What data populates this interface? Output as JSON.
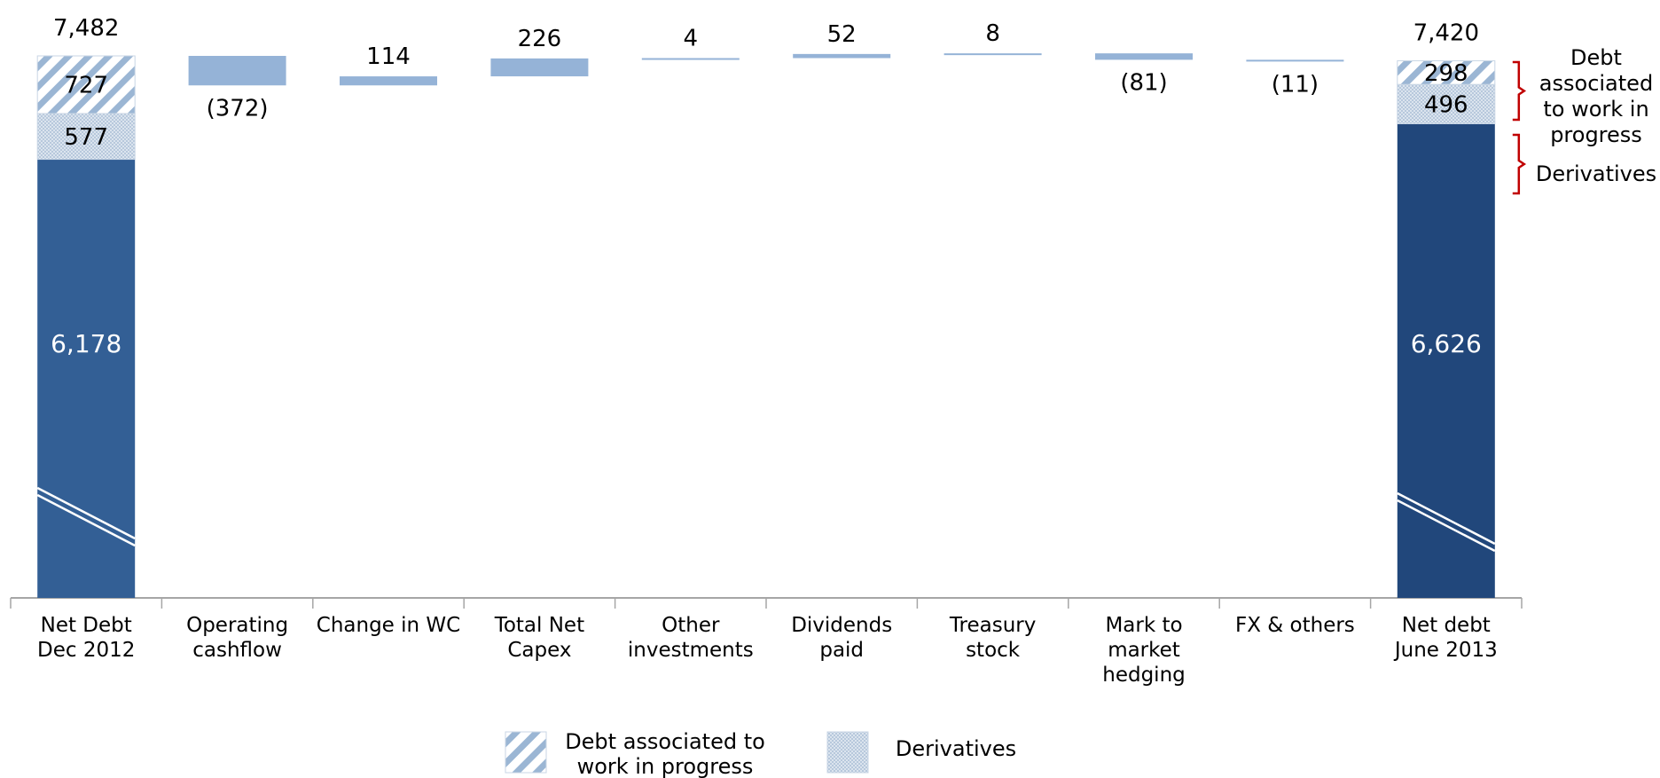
{
  "chart_data": {
    "type": "bar",
    "subtype": "waterfall",
    "categories": [
      [
        "Net Debt",
        "Dec 2012"
      ],
      [
        "Operating",
        "cashflow"
      ],
      [
        "Change in WC"
      ],
      [
        "Total Net",
        "Capex"
      ],
      [
        "Other",
        "investments"
      ],
      [
        "Dividends",
        "paid"
      ],
      [
        "Treasury",
        "stock"
      ],
      [
        "Mark to",
        "market",
        "hedging"
      ],
      [
        "FX & others"
      ],
      [
        "Net debt",
        "June 2013"
      ]
    ],
    "start": {
      "total": 7482,
      "total_label": "7,482",
      "segments": [
        {
          "name": "Net debt",
          "value": 6178,
          "label": "6,178"
        },
        {
          "name": "Derivatives",
          "value": 577,
          "label": "577"
        },
        {
          "name": "Debt associated to work in progress",
          "value": 727,
          "label": "727"
        }
      ]
    },
    "changes": [
      {
        "value": -372,
        "label": "(372)"
      },
      {
        "value": 114,
        "label": "114"
      },
      {
        "value": 226,
        "label": "226"
      },
      {
        "value": 4,
        "label": "4"
      },
      {
        "value": 52,
        "label": "52"
      },
      {
        "value": 8,
        "label": "8"
      },
      {
        "value": -81,
        "label": "(81)"
      },
      {
        "value": -11,
        "label": "(11)"
      }
    ],
    "end": {
      "total": 7420,
      "total_label": "7,420",
      "segments": [
        {
          "name": "Net debt",
          "value": 6626,
          "label": "6,626"
        },
        {
          "name": "Derivatives",
          "value": 496,
          "label": "496"
        },
        {
          "name": "Debt associated to work in progress",
          "value": 298,
          "label": "298"
        }
      ]
    },
    "annotations": [
      {
        "lines": [
          "Debt",
          "associated",
          "to work in",
          "progress"
        ]
      },
      {
        "lines": [
          "Derivatives"
        ]
      }
    ],
    "legend": {
      "position": "bottom-center",
      "items": [
        {
          "key": "wip",
          "lines": [
            "Debt associated to",
            "work in progress"
          ]
        },
        {
          "key": "deriv",
          "lines": [
            "Derivatives"
          ]
        }
      ]
    },
    "axis_break": true,
    "colors": {
      "base_start": "#335f95",
      "base_end": "#21477b",
      "floating": "#95b3d7",
      "pattern": "#9bb6d4",
      "bracket": "#c00000",
      "axis": "#a6a6a6"
    }
  }
}
